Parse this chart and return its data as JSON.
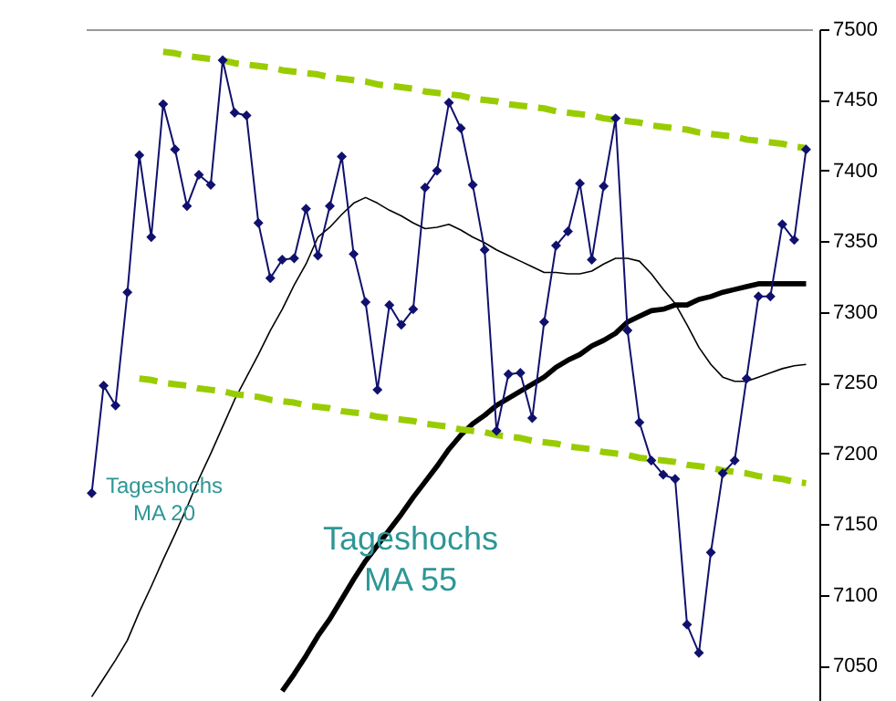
{
  "chart_data": {
    "type": "line",
    "categories": [
      null,
      null,
      null,
      null,
      null,
      null,
      null,
      null,
      null,
      null,
      null,
      null,
      null,
      null,
      null,
      null,
      null,
      null,
      null,
      null,
      null,
      null,
      null,
      null,
      null,
      null,
      null,
      null,
      null,
      null,
      null,
      null,
      null,
      null,
      null,
      null,
      null,
      null,
      null,
      null,
      null,
      null,
      null,
      null,
      null,
      null,
      null,
      null,
      null,
      null,
      null,
      null,
      null,
      null,
      null,
      null,
      null,
      null,
      null,
      null,
      null
    ],
    "ylim": [
      7025,
      7500
    ],
    "yticks": [
      7050,
      7100,
      7150,
      7200,
      7250,
      7300,
      7350,
      7400,
      7450,
      7500
    ],
    "tick_labels": "y",
    "grid": false,
    "series": [
      {
        "color": "#000000",
        "marker": "none",
        "line_style": "solid",
        "name": "Tageshochs MA 20",
        "values": [
          7028,
          7041,
          7054,
          7068,
          7088,
          7106,
          7125,
          7143,
          7162,
          7182,
          7200,
          7219,
          7238,
          7254,
          7270,
          7287,
          7302,
          7319,
          7334,
          7353,
          7360,
          7369,
          7377,
          7381,
          7377,
          7372,
          7368,
          7363,
          7359,
          7360,
          7362,
          7358,
          7353,
          7349,
          7344,
          7340,
          7336,
          7332,
          7328,
          7328,
          7327,
          7327,
          7329,
          7334,
          7338,
          7338,
          7336,
          7327,
          7316,
          7306,
          7291,
          7275,
          7263,
          7254,
          7251,
          7251,
          7254,
          7257,
          7260,
          7262,
          7263
        ]
      },
      {
        "color": "#000000",
        "marker": "none",
        "line_style": "solid",
        "name": "Tageshochs MA 55",
        "values": [
          null,
          null,
          null,
          null,
          null,
          null,
          null,
          null,
          null,
          null,
          null,
          null,
          null,
          null,
          null,
          null,
          7032,
          7044,
          7057,
          7071,
          7083,
          7097,
          7111,
          7124,
          7135,
          7146,
          7157,
          7169,
          7180,
          7191,
          7203,
          7213,
          7221,
          7227,
          7234,
          7239,
          7244,
          7249,
          7254,
          7261,
          7266,
          7270,
          7276,
          7280,
          7285,
          7293,
          7297,
          7301,
          7302,
          7305,
          7305,
          7309,
          7311,
          7314,
          7316,
          7318,
          7320,
          7320,
          7320,
          7320,
          7320
        ]
      },
      {
        "color": "#99cc00",
        "marker": "none",
        "line_style": "dashed",
        "values": [
          null,
          null,
          null,
          null,
          null,
          null,
          7484,
          7483,
          7481,
          7480,
          7479,
          7478,
          7476,
          7475,
          7474,
          7473,
          7471,
          7470,
          7469,
          7468,
          7466,
          7465,
          7464,
          7463,
          7461,
          7460,
          7459,
          7458,
          7456,
          7455,
          7454,
          7453,
          7451,
          7450,
          7449,
          7447,
          7446,
          7445,
          7444,
          7442,
          7441,
          7440,
          7439,
          7437,
          7436,
          7435,
          7434,
          7432,
          7431,
          7430,
          7429,
          7427,
          7426,
          7425,
          7424,
          7422,
          7421,
          7420,
          7419,
          7417,
          7416
        ]
      },
      {
        "color": "#99cc00",
        "marker": "none",
        "line_style": "dashed",
        "values": [
          null,
          null,
          null,
          null,
          7253,
          7252,
          7250,
          7249,
          7248,
          7246,
          7245,
          7244,
          7242,
          7241,
          7240,
          7238,
          7237,
          7236,
          7234,
          7233,
          7232,
          7230,
          7229,
          7228,
          7226,
          7225,
          7224,
          7223,
          7221,
          7220,
          7219,
          7217,
          7216,
          7215,
          7213,
          7212,
          7211,
          7209,
          7208,
          7207,
          7205,
          7204,
          7203,
          7201,
          7200,
          7199,
          7197,
          7196,
          7195,
          7194,
          7192,
          7191,
          7190,
          7188,
          7187,
          7186,
          7184,
          7183,
          7182,
          7180,
          7179
        ]
      },
      {
        "color": "#10106e",
        "marker": "diamond",
        "line_style": "solid",
        "values": [
          7172,
          7248,
          7234,
          7314,
          7411,
          7353,
          7447,
          7415,
          7375,
          7397,
          7390,
          7478,
          7441,
          7439,
          7363,
          7324,
          7337,
          7338,
          7373,
          7340,
          7375,
          7410,
          7341,
          7307,
          7245,
          7305,
          7291,
          7302,
          7388,
          7400,
          7448,
          7430,
          7390,
          7344,
          7216,
          7256,
          7257,
          7225,
          7293,
          7347,
          7357,
          7391,
          7337,
          7389,
          7437,
          7287,
          7222,
          7195,
          7185,
          7182,
          7079,
          7059,
          7130,
          7186,
          7195,
          7253,
          7311,
          7311,
          7362,
          7351,
          7415
        ]
      }
    ]
  }
}
